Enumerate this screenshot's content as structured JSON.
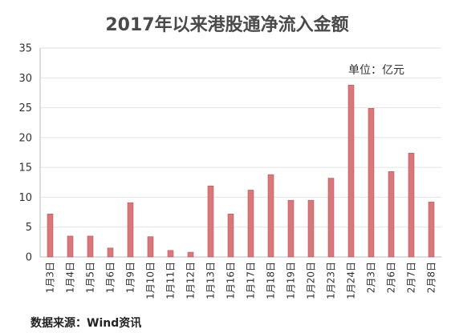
{
  "chart_data": {
    "type": "bar",
    "title": "2017年以来港股通净流入金额",
    "unit_label": "单位：亿元",
    "source": "数据来源：Wind资讯",
    "categories": [
      "1月3日",
      "1月4日",
      "1月5日",
      "1月6日",
      "1月9日",
      "1月10日",
      "1月11日",
      "1月12日",
      "1月13日",
      "1月16日",
      "1月17日",
      "1月18日",
      "1月19日",
      "1月20日",
      "1月23日",
      "1月24日",
      "2月3日",
      "2月6日",
      "2月7日",
      "2月8日"
    ],
    "values": [
      7.2,
      3.5,
      3.5,
      1.5,
      9.1,
      3.4,
      1.1,
      0.8,
      11.9,
      7.2,
      11.2,
      13.8,
      9.5,
      9.5,
      13.2,
      28.8,
      24.9,
      14.3,
      17.4,
      9.2
    ],
    "ylim": [
      0,
      35
    ],
    "yticks": [
      0,
      5,
      10,
      15,
      20,
      25,
      30,
      35
    ],
    "grid": true,
    "bar_color": "#d9777b"
  }
}
